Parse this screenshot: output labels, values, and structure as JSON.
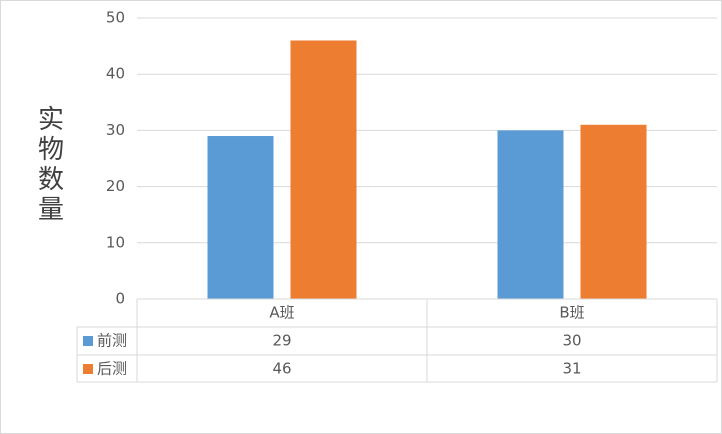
{
  "chart_data": {
    "type": "bar",
    "y_label": "实物数量",
    "categories": [
      "A班",
      "B班"
    ],
    "series": [
      {
        "name": "前测",
        "color": "#5b9bd5",
        "values": [
          29,
          30
        ]
      },
      {
        "name": "后测",
        "color": "#ed7d31",
        "values": [
          46,
          31
        ]
      }
    ],
    "ylim": [
      0,
      50
    ],
    "yticks": [
      0,
      10,
      20,
      30,
      40,
      50
    ],
    "grid": true,
    "data_table": true
  }
}
